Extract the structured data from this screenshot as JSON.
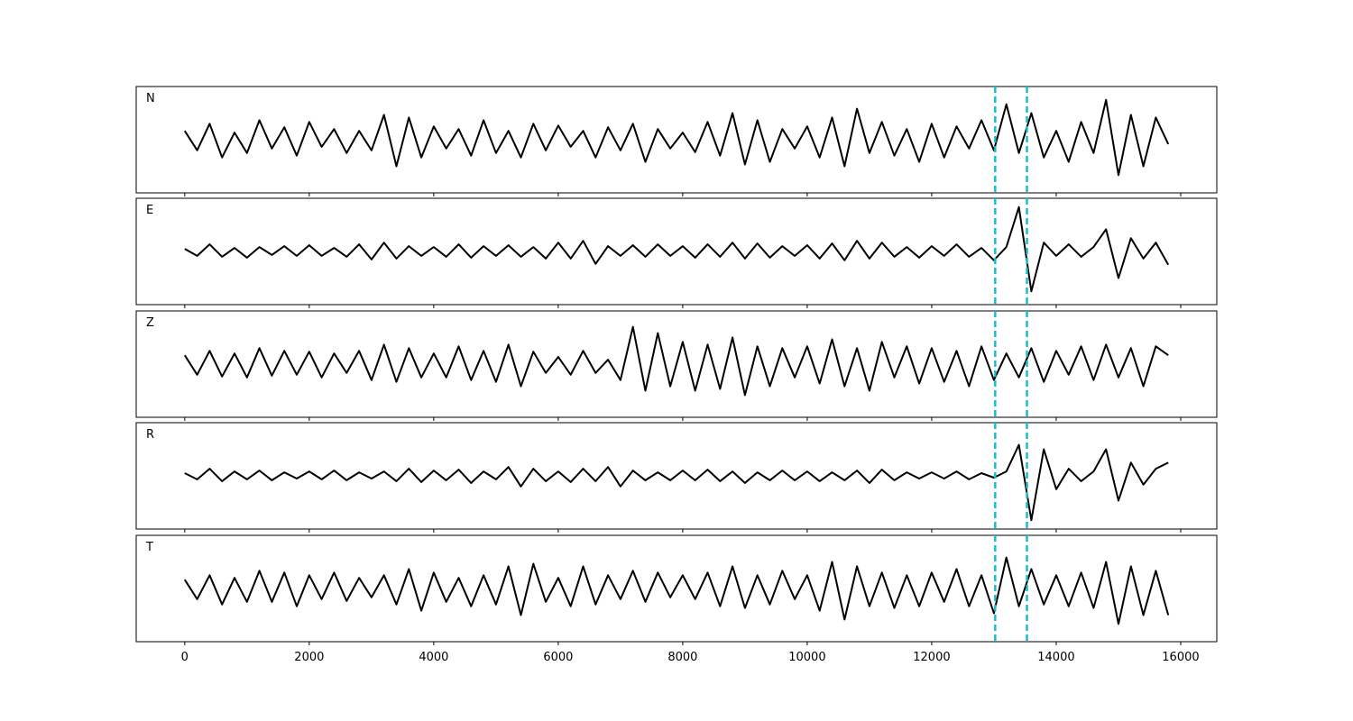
{
  "chart_data": {
    "type": "line",
    "x": [
      0,
      200,
      400,
      600,
      800,
      1000,
      1200,
      1400,
      1600,
      1800,
      2000,
      2200,
      2400,
      2600,
      2800,
      3000,
      3200,
      3400,
      3600,
      3800,
      4000,
      4200,
      4400,
      4600,
      4800,
      5000,
      5200,
      5400,
      5600,
      5800,
      6000,
      6200,
      6400,
      6600,
      6800,
      7000,
      7200,
      7400,
      7600,
      7800,
      8000,
      8200,
      8400,
      8600,
      8800,
      9000,
      9200,
      9400,
      9600,
      9800,
      10000,
      10200,
      10400,
      10600,
      10800,
      11000,
      11200,
      11400,
      11600,
      11800,
      12000,
      12200,
      12400,
      12600,
      12800,
      13000,
      13200,
      13400,
      13600,
      13800,
      14000,
      14200,
      14400,
      14600,
      14800,
      15000,
      15200,
      15400,
      15600,
      15800
    ],
    "xlim": [
      -780,
      16580
    ],
    "xticks": [
      0,
      2000,
      4000,
      6000,
      8000,
      10000,
      12000,
      14000,
      16000
    ],
    "ylim": [
      -60,
      60
    ],
    "color": "#000000",
    "markers": [
      13020,
      13530
    ],
    "marker_color": "#17becf",
    "series": [
      {
        "name": "N",
        "values": [
          10,
          -12,
          18,
          -20,
          8,
          -15,
          22,
          -10,
          14,
          -18,
          20,
          -8,
          12,
          -15,
          10,
          -12,
          28,
          -30,
          25,
          -20,
          15,
          -10,
          12,
          -18,
          22,
          -15,
          10,
          -20,
          18,
          -12,
          16,
          -8,
          10,
          -20,
          14,
          -12,
          18,
          -25,
          12,
          -10,
          8,
          -14,
          20,
          -18,
          30,
          -28,
          22,
          -25,
          12,
          -10,
          15,
          -20,
          25,
          -30,
          35,
          -15,
          20,
          -18,
          12,
          -25,
          18,
          -20,
          15,
          -10,
          22,
          -12,
          40,
          -15,
          30,
          -20,
          10,
          -25,
          20,
          -15,
          45,
          -40,
          28,
          -30,
          25,
          -5
        ]
      },
      {
        "name": "E",
        "values": [
          3,
          -5,
          8,
          -6,
          4,
          -7,
          5,
          -4,
          6,
          -5,
          7,
          -5,
          4,
          -6,
          8,
          -9,
          10,
          -8,
          6,
          -5,
          5,
          -6,
          8,
          -7,
          6,
          -5,
          7,
          -6,
          5,
          -8,
          10,
          -8,
          12,
          -14,
          6,
          -5,
          7,
          -6,
          8,
          -5,
          6,
          -7,
          8,
          -6,
          10,
          -8,
          9,
          -7,
          6,
          -5,
          7,
          -8,
          9,
          -10,
          12,
          -8,
          10,
          -6,
          5,
          -7,
          6,
          -5,
          8,
          -6,
          4,
          -10,
          5,
          50,
          -45,
          10,
          -5,
          8,
          -6,
          5,
          25,
          -30,
          15,
          -8,
          10,
          -15
        ]
      },
      {
        "name": "Z",
        "values": [
          10,
          -12,
          15,
          -14,
          12,
          -15,
          18,
          -13,
          15,
          -12,
          14,
          -15,
          12,
          -10,
          15,
          -18,
          22,
          -20,
          18,
          -15,
          12,
          -15,
          20,
          -18,
          15,
          -20,
          22,
          -25,
          14,
          -10,
          8,
          -12,
          15,
          -10,
          5,
          -18,
          42,
          -30,
          35,
          -25,
          25,
          -30,
          22,
          -28,
          30,
          -35,
          20,
          -25,
          18,
          -15,
          20,
          -22,
          28,
          -25,
          18,
          -30,
          25,
          -15,
          20,
          -22,
          18,
          -20,
          15,
          -25,
          20,
          -18,
          12,
          -15,
          18,
          -20,
          15,
          -12,
          20,
          -18,
          22,
          -15,
          18,
          -25,
          20,
          10
        ]
      },
      {
        "name": "R",
        "values": [
          3,
          -4,
          8,
          -6,
          5,
          -4,
          6,
          -5,
          4,
          -3,
          5,
          -4,
          6,
          -5,
          4,
          -3,
          5,
          -6,
          8,
          -7,
          6,
          -5,
          7,
          -8,
          5,
          -4,
          10,
          -12,
          8,
          -6,
          5,
          -7,
          8,
          -6,
          10,
          -12,
          6,
          -5,
          4,
          -5,
          6,
          -5,
          7,
          -6,
          5,
          -8,
          4,
          -5,
          6,
          -5,
          5,
          -6,
          4,
          -5,
          6,
          -8,
          7,
          -5,
          4,
          -3,
          4,
          -3,
          5,
          -4,
          3,
          -2,
          5,
          35,
          -50,
          30,
          -15,
          8,
          -6,
          5,
          30,
          -28,
          15,
          -10,
          8,
          15
        ]
      },
      {
        "name": "T",
        "values": [
          10,
          -12,
          15,
          -18,
          12,
          -15,
          20,
          -15,
          18,
          -20,
          15,
          -12,
          18,
          -14,
          12,
          -10,
          15,
          -18,
          22,
          -25,
          18,
          -15,
          12,
          -20,
          15,
          -18,
          25,
          -30,
          28,
          -15,
          12,
          -20,
          25,
          -18,
          15,
          -12,
          20,
          -15,
          18,
          -10,
          15,
          -12,
          18,
          -20,
          25,
          -22,
          15,
          -18,
          20,
          -12,
          15,
          -25,
          30,
          -35,
          25,
          -20,
          18,
          -22,
          15,
          -20,
          18,
          -15,
          22,
          -20,
          15,
          -28,
          35,
          -20,
          22,
          -18,
          15,
          -20,
          18,
          -22,
          30,
          -40,
          25,
          -30,
          20,
          -30
        ]
      }
    ]
  }
}
